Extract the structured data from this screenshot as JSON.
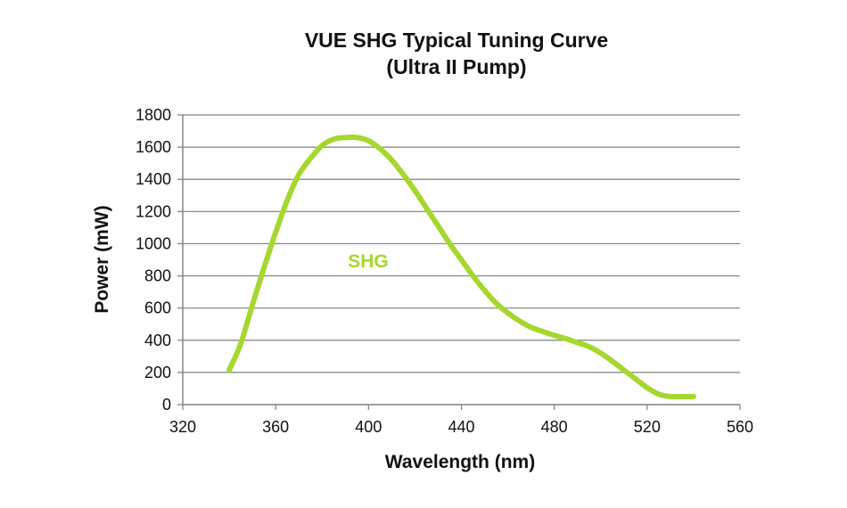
{
  "chart_data": {
    "type": "line",
    "title": "VUE SHG Typical Tuning Curve",
    "subtitle": "(Ultra II Pump)",
    "xlabel": "Wavelength (nm)",
    "ylabel": "Power (mW)",
    "xlim": [
      320,
      560
    ],
    "ylim": [
      0,
      1800
    ],
    "xticks": [
      "320",
      "360",
      "400",
      "440",
      "480",
      "520",
      "560"
    ],
    "yticks": [
      "0",
      "200",
      "400",
      "600",
      "800",
      "1000",
      "1200",
      "1400",
      "1600",
      "1800"
    ],
    "grid": true,
    "series": [
      {
        "name": "SHG",
        "color": "#a6d72e",
        "x": [
          340,
          345,
          350,
          355,
          360,
          365,
          370,
          375,
          380,
          385,
          390,
          395,
          400,
          405,
          410,
          415,
          420,
          425,
          430,
          435,
          440,
          445,
          450,
          455,
          460,
          465,
          470,
          475,
          480,
          485,
          490,
          495,
          500,
          505,
          510,
          515,
          520,
          525,
          530,
          535,
          540
        ],
        "y": [
          215,
          380,
          620,
          850,
          1070,
          1270,
          1430,
          1530,
          1610,
          1650,
          1660,
          1660,
          1640,
          1590,
          1520,
          1430,
          1330,
          1220,
          1110,
          1000,
          900,
          800,
          710,
          630,
          570,
          520,
          480,
          455,
          430,
          410,
          385,
          360,
          320,
          270,
          215,
          160,
          105,
          65,
          50,
          50,
          50
        ]
      }
    ]
  }
}
